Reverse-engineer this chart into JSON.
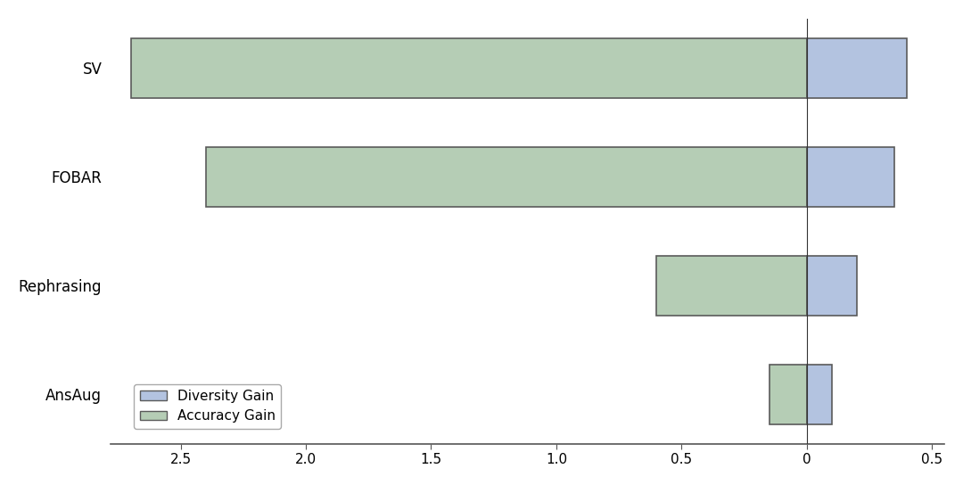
{
  "categories": [
    "AnsAug",
    "Rephrasing",
    "FOBAR",
    "SV"
  ],
  "accuracy_gain": [
    0.15,
    0.6,
    2.4,
    2.7
  ],
  "diversity_gain": [
    -0.1,
    -0.2,
    -0.35,
    -0.4
  ],
  "accuracy_color": "#b5cdb5",
  "diversity_color": "#b3c3e0",
  "bar_edge_color": "#5a5a5a",
  "bar_height": 0.55,
  "xlim": [
    2.78,
    -0.55
  ],
  "xtick_vals": [
    2.5,
    2.0,
    1.5,
    1.0,
    0.5,
    0.0,
    -0.5
  ],
  "xtick_labels": [
    "2.5",
    "2.0",
    "1.5",
    "1.0",
    "0.5",
    "0",
    "0.5"
  ],
  "background_color": "#ffffff",
  "legend_labels": [
    "Diversity Gain",
    "Accuracy Gain"
  ],
  "legend_colors": [
    "#b3c3e0",
    "#b5cdb5"
  ]
}
